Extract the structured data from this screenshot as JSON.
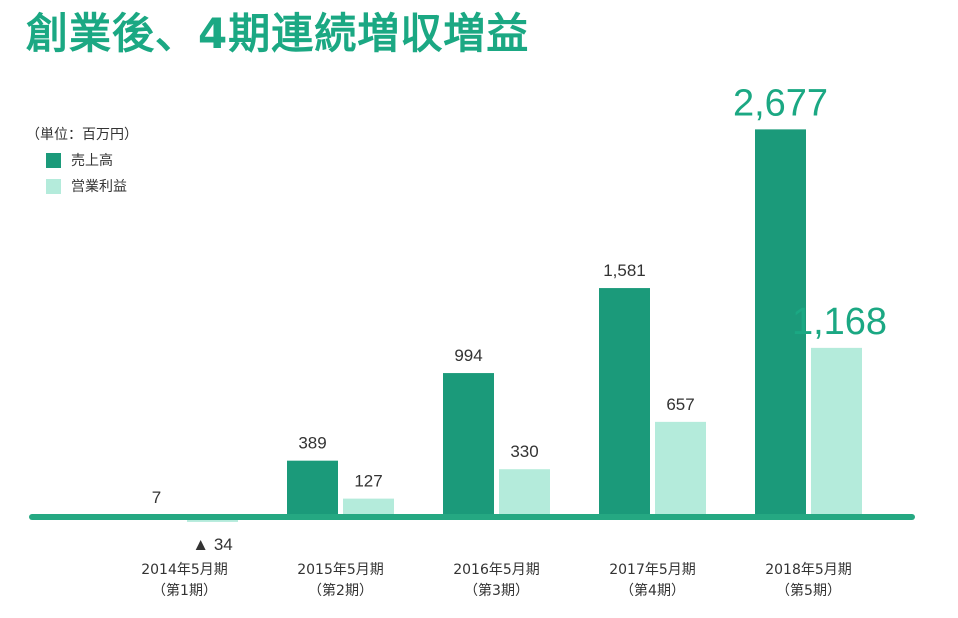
{
  "title": "創業後、4期連続増収増益",
  "unit_label": "（単位：百万円）",
  "colors": {
    "sales": "#1b9a7a",
    "profit": "#b4ebdb",
    "baseline": "#25a882",
    "highlight_text": "#1ba883",
    "text": "#333333"
  },
  "chart_data": {
    "type": "bar",
    "title": "創業後、4期連続増収増益",
    "ylabel": "（単位：百万円）",
    "categories": [
      [
        "2014年5月期",
        "（第1期）"
      ],
      [
        "2015年5月期",
        "（第2期）"
      ],
      [
        "2016年5月期",
        "（第3期）"
      ],
      [
        "2017年5月期",
        "（第4期）"
      ],
      [
        "2018年5月期",
        "（第5期）"
      ]
    ],
    "series": [
      {
        "name": "売上高",
        "values": [
          7,
          389,
          994,
          1581,
          2677
        ],
        "labels": [
          "7",
          "389",
          "994",
          "1,581",
          "2,677"
        ]
      },
      {
        "name": "営業利益",
        "values": [
          -34,
          127,
          330,
          657,
          1168
        ],
        "labels": [
          "▲ 34",
          "127",
          "330",
          "657",
          "1,168"
        ]
      }
    ],
    "ylim": [
      -34,
      2677
    ],
    "legend": "top-left",
    "grid": false
  }
}
